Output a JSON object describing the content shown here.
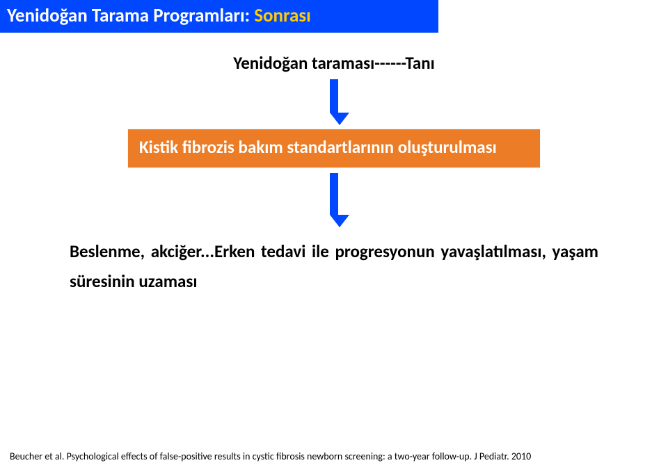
{
  "title": {
    "part1": "Yenidoğan Tarama Programları: ",
    "part2": "Sonrası",
    "bg": "#0047ff",
    "color1": "#ffffff",
    "color2": "#ffcc00",
    "fontsize": 27
  },
  "subtitle": {
    "text": "Yenidoğan taraması------Tanı",
    "color": "#000000",
    "fontsize": 25
  },
  "arrow": {
    "color": "#0047ff",
    "shaft1_height": 48,
    "shaft2_height": 60,
    "head_size": 18
  },
  "box": {
    "text": "Kistik fibrozis bakım standartlarının oluşturulması",
    "bg": "#ec7c26",
    "text_color": "#ffffff",
    "fontsize": 25
  },
  "body": {
    "text": "Beslenme, akciğer...Erken tedavi ile progresyonun yavaşlatılması, yaşam süresinin uzaması",
    "color": "#000000",
    "fontsize": 25
  },
  "citation": {
    "text": "Beucher et al. Psychological effects of false-positive results in cystic fibrosis newborn screening: a two-year follow-up. J Pediatr. 2010",
    "color": "#000000",
    "fontsize": 14
  }
}
